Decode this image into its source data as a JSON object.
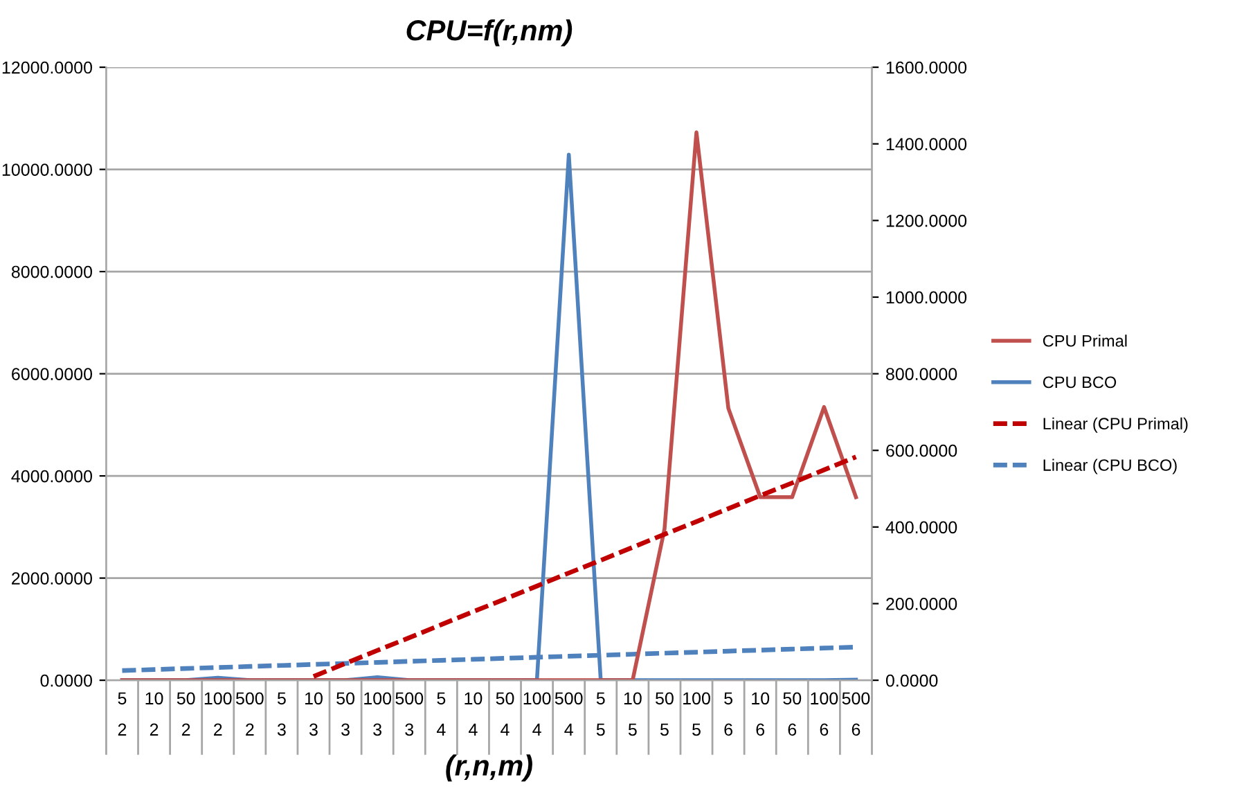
{
  "chart_data": {
    "type": "line",
    "title": "CPU=f(r,nm)",
    "xlabel": "(r,n,m)",
    "categories": [
      "5\n2",
      "10\n2",
      "50\n2",
      "100\n2",
      "500\n2",
      "5\n3",
      "10\n3",
      "50\n3",
      "100\n3",
      "500\n3",
      "5\n4",
      "10\n4",
      "50\n4",
      "100\n4",
      "500\n4",
      "5\n5",
      "10\n5",
      "50\n5",
      "100\n5",
      "5\n6",
      "10\n6",
      "50\n6",
      "100\n6",
      "500\n6"
    ],
    "series": [
      {
        "name": "CPU Primal",
        "color": "#c0504d",
        "axis": "y2",
        "line_style": "solid",
        "values": [
          0,
          0,
          0,
          0,
          0,
          0,
          0,
          0,
          0,
          0,
          0,
          0,
          0,
          0,
          0,
          0,
          0,
          395,
          1430,
          710,
          478,
          478,
          713,
          478
        ]
      },
      {
        "name": "CPU BCO",
        "color": "#4f81bd",
        "line_style": "solid",
        "values": [
          0,
          0,
          0,
          50,
          0,
          0,
          0,
          0,
          60,
          0,
          0,
          0,
          0,
          0,
          10290,
          0,
          0,
          0,
          0,
          0,
          0,
          0,
          0,
          10
        ]
      },
      {
        "name": "Linear (CPU Primal)",
        "color": "#c00000",
        "axis": "y2",
        "line_style": "dashed",
        "values": [
          null,
          null,
          null,
          null,
          null,
          null,
          10,
          44,
          78,
          111,
          145,
          179,
          212,
          246,
          280,
          313,
          347,
          381,
          414,
          448,
          482,
          515,
          549,
          583
        ]
      },
      {
        "name": "Linear (CPU BCO)",
        "color": "#4f81bd",
        "line_style": "dashed",
        "values": [
          190,
          210,
          230,
          250,
          270,
          290,
          310,
          330,
          350,
          370,
          390,
          410,
          430,
          450,
          470,
          490,
          510,
          530,
          550,
          570,
          590,
          610,
          630,
          650
        ]
      }
    ],
    "ylim": [
      0,
      12000
    ],
    "yticks": [
      {
        "value": 0,
        "label": "0.0000"
      },
      {
        "value": 2000,
        "label": "2000.0000"
      },
      {
        "value": 4000,
        "label": "4000.0000"
      },
      {
        "value": 6000,
        "label": "6000.0000"
      },
      {
        "value": 8000,
        "label": "8000.0000"
      },
      {
        "value": 10000,
        "label": "10000.0000"
      },
      {
        "value": 12000,
        "label": "12000.0000"
      }
    ],
    "y2lim": [
      0,
      1600
    ],
    "y2ticks": [
      {
        "value": 0,
        "label": "0.0000"
      },
      {
        "value": 200,
        "label": "200.0000"
      },
      {
        "value": 400,
        "label": "400.0000"
      },
      {
        "value": 600,
        "label": "600.0000"
      },
      {
        "value": 800,
        "label": "800.0000"
      },
      {
        "value": 1000,
        "label": "1000.0000"
      },
      {
        "value": 1200,
        "label": "1200.0000"
      },
      {
        "value": 1400,
        "label": "1400.0000"
      },
      {
        "value": 1600,
        "label": "1600.0000"
      }
    ],
    "grid": "y",
    "legend": "right",
    "marker": "none"
  }
}
